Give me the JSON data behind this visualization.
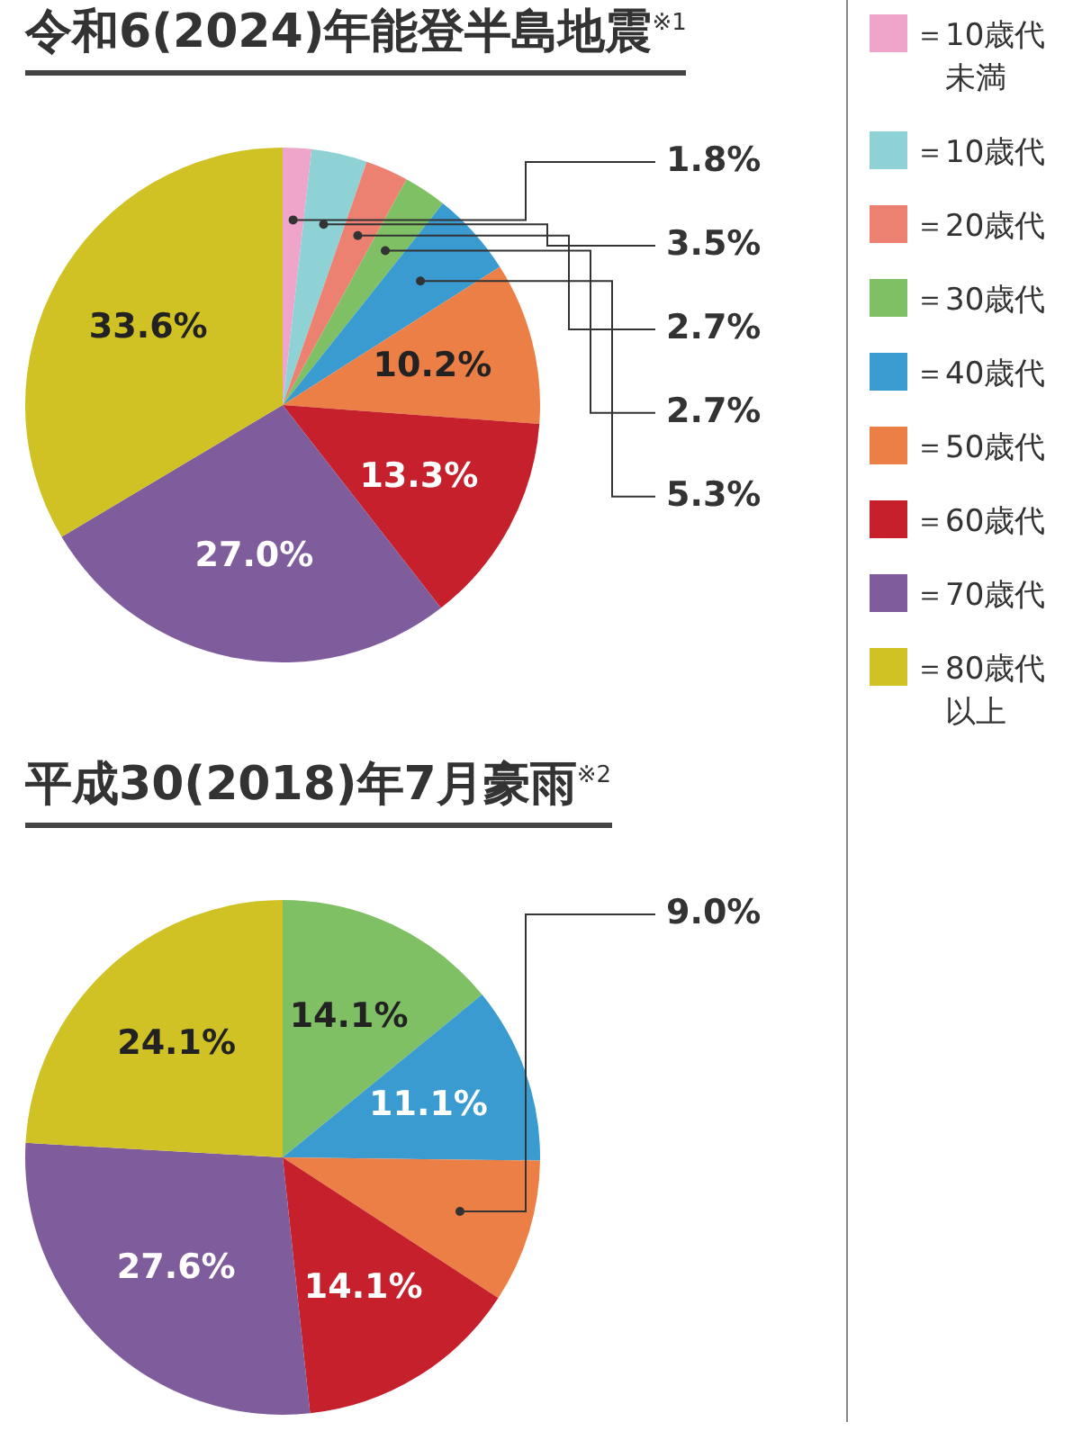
{
  "chart_data": [
    {
      "type": "pie",
      "title": "令和6(2024)年能登半島地震$^{※1}$",
      "legend": "right",
      "categories": [
        "＝10歳代未満",
        "＝10歳代",
        "＝20歳代",
        "＝30歳代",
        "＝40歳代",
        "＝50歳代",
        "＝60歳代",
        "＝70歳代",
        "＝80歳代以上"
      ],
      "values": [
        1.8,
        3.5,
        2.7,
        2.7,
        5.3,
        10.2,
        13.3,
        27.0,
        33.6
      ],
      "value_labels": [
        "1.8%",
        "3.5%",
        "2.7%",
        "2.7%",
        "5.3%",
        "10.2%",
        "13.3%",
        "27.0%",
        "33.6%"
      ],
      "colors": [
        "#eea5c9",
        "#8fd2d6",
        "#ec8171",
        "#80c064",
        "#3a9bd0",
        "#ec7f45",
        "#c5202b",
        "#7f5c9b",
        "#d0c125"
      ]
    },
    {
      "type": "pie",
      "title": "平成30(2018)年7月豪雨$^{※2}$",
      "legend": false,
      "categories": [
        null,
        null,
        null,
        null,
        null,
        null
      ],
      "values": [
        14.1,
        11.1,
        9.0,
        14.1,
        27.6,
        24.1
      ],
      "value_labels": [
        "14.1%",
        "11.1%",
        "9.0%",
        "14.1%",
        "27.6%",
        "24.1%"
      ],
      "colors": [
        "#80c064",
        "#3a9bd0",
        "#ec7f45",
        "#c5202b",
        "#7f5c9b",
        "#d0c125"
      ]
    }
  ]
}
